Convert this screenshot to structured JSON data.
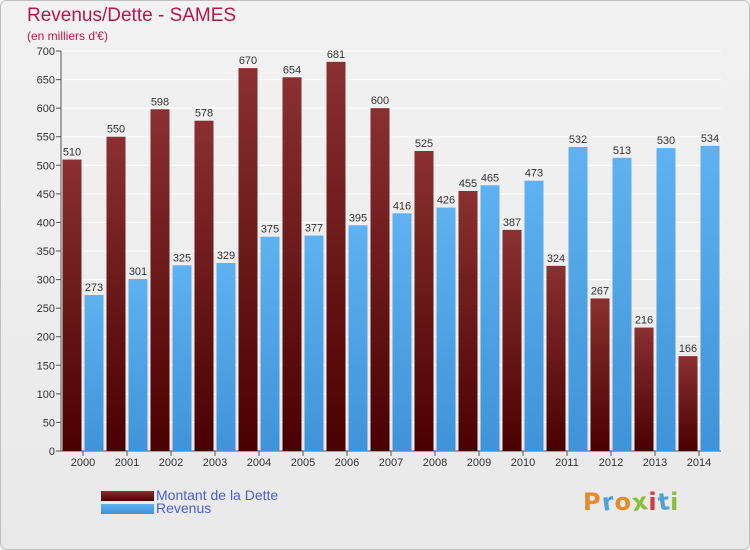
{
  "title": "Revenus/Dette - SAMES",
  "subtitle": "(en milliers d'€)",
  "colors": {
    "debt_dark": "#4a0000",
    "debt_light": "#8a3030",
    "revenue_dark": "#3f93d8",
    "revenue_light": "#5fb2ef",
    "title": "#b5174f",
    "legend_text": "#4a5fd0"
  },
  "legend": [
    {
      "label": "Montant de la Dette",
      "series": "debt"
    },
    {
      "label": "Revenus",
      "series": "revenue"
    }
  ],
  "logo": {
    "text": "Proxiti",
    "colors": [
      "#e8892a",
      "#4da3d4",
      "#e8892a",
      "#8bbf3a",
      "#d63a3a",
      "#4da3d4",
      "#8bbf3a"
    ]
  },
  "chart_data": {
    "type": "bar",
    "categories": [
      "2000",
      "2001",
      "2002",
      "2003",
      "2004",
      "2005",
      "2006",
      "2007",
      "2008",
      "2009",
      "2010",
      "2011",
      "2012",
      "2013",
      "2014"
    ],
    "series": [
      {
        "name": "Montant de la Dette",
        "values": [
          510,
          550,
          598,
          578,
          670,
          654,
          681,
          600,
          525,
          455,
          387,
          324,
          267,
          216,
          166
        ]
      },
      {
        "name": "Revenus",
        "values": [
          273,
          301,
          325,
          329,
          375,
          377,
          395,
          416,
          426,
          465,
          473,
          532,
          513,
          530,
          534
        ]
      }
    ],
    "ylim": [
      0,
      700
    ],
    "yticks": [
      0,
      50,
      100,
      150,
      200,
      250,
      300,
      350,
      400,
      450,
      500,
      550,
      600,
      650,
      700
    ],
    "grid": true,
    "legend_position": "bottom-left"
  }
}
